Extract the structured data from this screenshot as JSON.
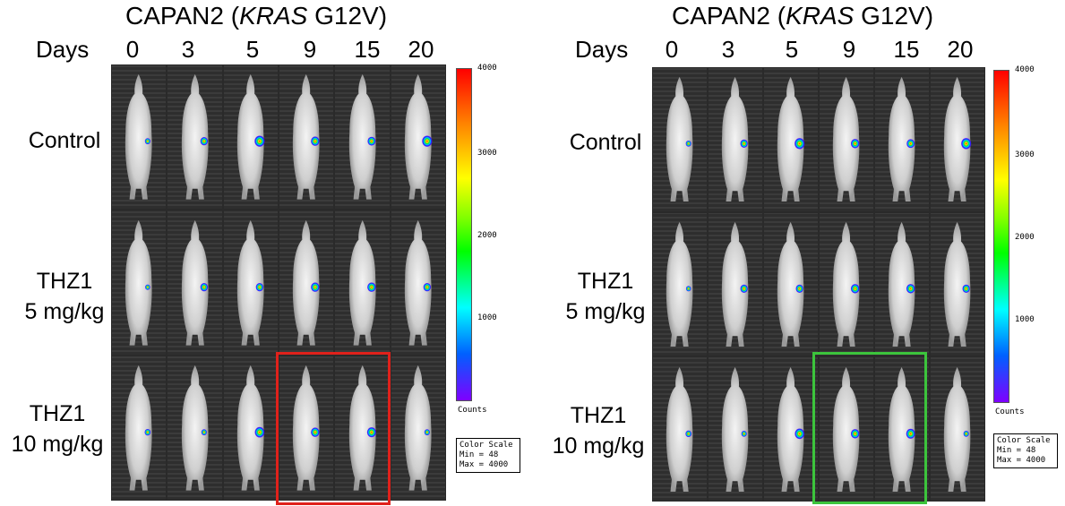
{
  "panels": [
    {
      "title_prefix": "CAPAN2 (",
      "title_gene": "KRAS",
      "title_suffix": " G12V)",
      "days_label": "Days",
      "days": [
        "0",
        "3",
        "5",
        "9",
        "15",
        "20"
      ],
      "rows": [
        {
          "label_line1": "Control",
          "label_line2": ""
        },
        {
          "label_line1": "THZ1",
          "label_line2": "5 mg/kg"
        },
        {
          "label_line1": "THZ1",
          "label_line2": "10 mg/kg"
        }
      ],
      "highlight_color": "#e0211b",
      "colorbar_ticks": [
        "4000",
        "3000",
        "2000",
        "1000"
      ],
      "colorbar_units": "Counts",
      "color_scale": {
        "line1": "Color Scale",
        "line2": "Min = 48",
        "line3": "Max = 4000"
      }
    },
    {
      "title_prefix": "CAPAN2 (",
      "title_gene": "KRAS",
      "title_suffix": " G12V)",
      "days_label": "Days",
      "days": [
        "0",
        "3",
        "5",
        "9",
        "15",
        "20"
      ],
      "rows": [
        {
          "label_line1": "Control",
          "label_line2": ""
        },
        {
          "label_line1": "THZ1",
          "label_line2": "5 mg/kg"
        },
        {
          "label_line1": "THZ1",
          "label_line2": "10 mg/kg"
        }
      ],
      "highlight_color": "#3cc43c",
      "colorbar_ticks": [
        "4000",
        "3000",
        "2000",
        "1000"
      ],
      "colorbar_units": "Counts",
      "color_scale": {
        "line1": "Color Scale",
        "line2": "Min = 48",
        "line3": "Max = 4000"
      }
    }
  ]
}
